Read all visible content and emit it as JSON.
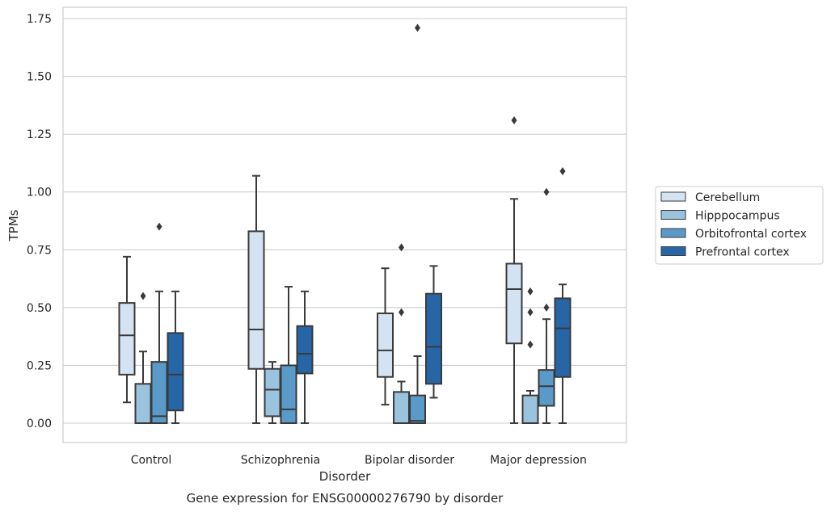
{
  "chart_data": {
    "type": "box",
    "title": "",
    "caption": "Gene expression for ENSG00000276790 by disorder",
    "xlabel": "Disorder",
    "ylabel": "TPMs",
    "categories": [
      "Control",
      "Schizophrenia",
      "Bipolar disorder",
      "Major depression"
    ],
    "ylim": [
      -0.08,
      1.8
    ],
    "yticks": [
      0.0,
      0.25,
      0.5,
      0.75,
      1.0,
      1.25,
      1.5,
      1.75
    ],
    "ytick_labels": [
      "0.00",
      "0.25",
      "0.50",
      "0.75",
      "1.00",
      "1.25",
      "1.50",
      "1.75"
    ],
    "grid": "horizontal",
    "legend_position": "right",
    "series": [
      {
        "name": "Cerebellum",
        "color": "#d4e3f2",
        "boxes": [
          {
            "whislo": 0.09,
            "q1": 0.21,
            "med": 0.38,
            "q3": 0.52,
            "whishi": 0.72,
            "fliers": []
          },
          {
            "whislo": 0.0,
            "q1": 0.235,
            "med": 0.405,
            "q3": 0.83,
            "whishi": 1.07,
            "fliers": []
          },
          {
            "whislo": 0.08,
            "q1": 0.2,
            "med": 0.315,
            "q3": 0.475,
            "whishi": 0.67,
            "fliers": []
          },
          {
            "whislo": 0.0,
            "q1": 0.345,
            "med": 0.58,
            "q3": 0.69,
            "whishi": 0.97,
            "fliers": [
              1.31
            ]
          }
        ]
      },
      {
        "name": "Hipppocampus",
        "color": "#9ac3de",
        "boxes": [
          {
            "whislo": 0.0,
            "q1": 0.0,
            "med": 0.0,
            "q3": 0.17,
            "whishi": 0.31,
            "fliers": [
              0.55
            ]
          },
          {
            "whislo": 0.0,
            "q1": 0.03,
            "med": 0.145,
            "q3": 0.235,
            "whishi": 0.265,
            "fliers": []
          },
          {
            "whislo": 0.0,
            "q1": 0.0,
            "med": 0.0,
            "q3": 0.135,
            "whishi": 0.18,
            "fliers": [
              0.48,
              0.76
            ]
          },
          {
            "whislo": 0.0,
            "q1": 0.0,
            "med": 0.0,
            "q3": 0.12,
            "whishi": 0.14,
            "fliers": [
              0.34,
              0.48,
              0.57
            ]
          }
        ]
      },
      {
        "name": "Orbitofrontal cortex",
        "color": "#5a9ac9",
        "boxes": [
          {
            "whislo": 0.0,
            "q1": 0.0,
            "med": 0.03,
            "q3": 0.265,
            "whishi": 0.57,
            "fliers": [
              0.85
            ]
          },
          {
            "whislo": 0.0,
            "q1": 0.0,
            "med": 0.06,
            "q3": 0.25,
            "whishi": 0.59,
            "fliers": []
          },
          {
            "whislo": 0.0,
            "q1": 0.0,
            "med": 0.01,
            "q3": 0.12,
            "whishi": 0.29,
            "fliers": [
              1.71
            ]
          },
          {
            "whislo": 0.0,
            "q1": 0.075,
            "med": 0.16,
            "q3": 0.23,
            "whishi": 0.45,
            "fliers": [
              0.5,
              1.0
            ]
          }
        ]
      },
      {
        "name": "Prefrontal cortex",
        "color": "#2666a7",
        "boxes": [
          {
            "whislo": 0.0,
            "q1": 0.055,
            "med": 0.21,
            "q3": 0.39,
            "whishi": 0.57,
            "fliers": []
          },
          {
            "whislo": 0.0,
            "q1": 0.215,
            "med": 0.3,
            "q3": 0.42,
            "whishi": 0.57,
            "fliers": []
          },
          {
            "whislo": 0.11,
            "q1": 0.17,
            "med": 0.33,
            "q3": 0.56,
            "whishi": 0.68,
            "fliers": []
          },
          {
            "whislo": 0.0,
            "q1": 0.2,
            "med": 0.41,
            "q3": 0.54,
            "whishi": 0.6,
            "fliers": [
              1.09
            ]
          }
        ]
      }
    ]
  }
}
